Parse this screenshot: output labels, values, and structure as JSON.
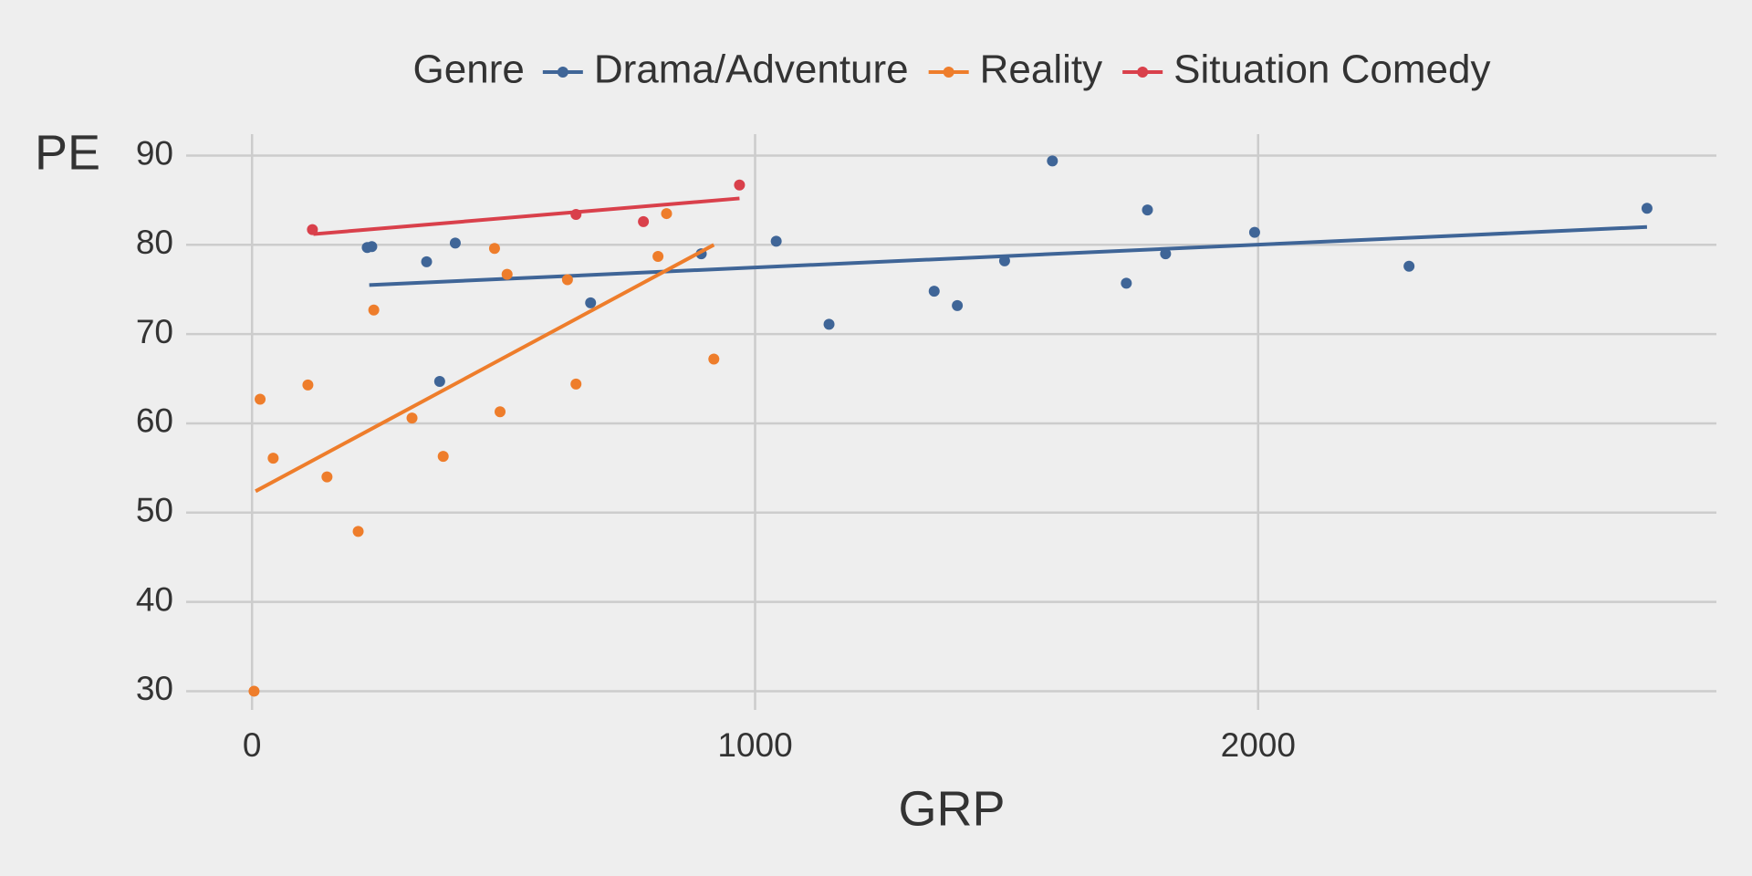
{
  "chart_data": {
    "type": "scatter",
    "legend_title": "Genre",
    "legend_position": "top",
    "x_label": "GRP",
    "y_label": "PE",
    "xlim": [
      -131,
      2911
    ],
    "ylim": [
      27.9,
      92.4
    ],
    "xticks": [
      0,
      1000,
      2000
    ],
    "yticks": [
      30,
      40,
      50,
      60,
      70,
      80,
      90
    ],
    "grid": true,
    "series": [
      {
        "name": "Drama/Adventure",
        "color": "#3f6597",
        "x": [
          229,
          238,
          347,
          373,
          404,
          673,
          893,
          1042,
          1147,
          1356,
          1402,
          1496,
          1591,
          1738,
          1780,
          1816,
          1993,
          2300,
          2773
        ],
        "values": [
          79.7,
          79.8,
          78.1,
          64.7,
          80.2,
          73.5,
          79.0,
          80.4,
          71.1,
          74.8,
          73.2,
          78.2,
          89.4,
          75.7,
          83.9,
          79.0,
          81.4,
          77.6,
          84.1
        ],
        "trend": {
          "x": [
            233,
            2773
          ],
          "values": [
            75.5,
            82.0
          ]
        }
      },
      {
        "name": "Reality",
        "color": "#ee7d2b",
        "x": [
          4,
          16,
          42,
          111,
          149,
          211,
          242,
          318,
          380,
          482,
          493,
          507,
          627,
          644,
          807,
          824,
          918
        ],
        "values": [
          30.0,
          62.7,
          56.1,
          64.3,
          54.0,
          47.9,
          72.7,
          60.6,
          56.3,
          79.6,
          61.3,
          76.7,
          76.1,
          64.4,
          78.7,
          83.5,
          67.2
        ],
        "trend": {
          "x": [
            7,
            918
          ],
          "values": [
            52.4,
            80.0
          ]
        }
      },
      {
        "name": "Situation Comedy",
        "color": "#d9404b",
        "x": [
          120,
          644,
          778,
          969
        ],
        "values": [
          81.7,
          83.4,
          82.6,
          86.7
        ],
        "trend": {
          "x": [
            122,
            969
          ],
          "values": [
            81.2,
            85.2
          ]
        }
      }
    ]
  }
}
